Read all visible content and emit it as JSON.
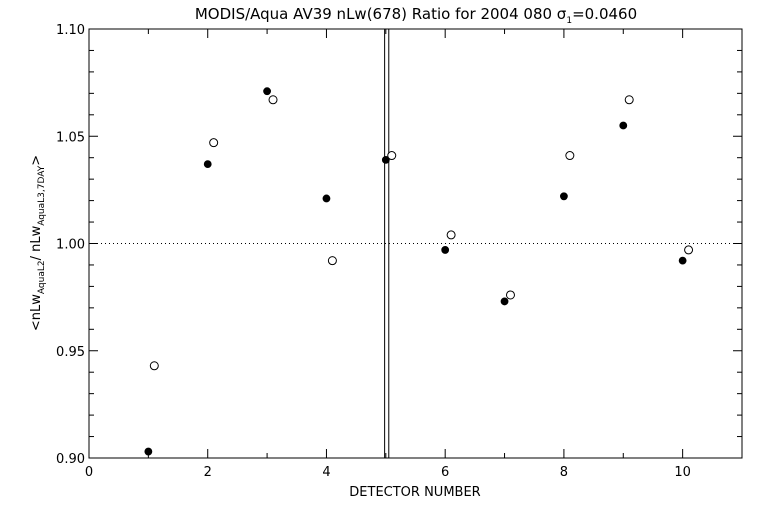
{
  "chart_data": {
    "type": "scatter",
    "title": "MODIS/Aqua AV39 nLw(678) Ratio for 2004 080 σ",
    "title_sub": "1",
    "title_tail": "=0.0460",
    "xlabel": "DETECTOR NUMBER",
    "ylabel": {
      "prefix": "<nLw",
      "sub1": "AquaL2",
      "mid": "/ nLw",
      "sub2": "AquaL3,7DAY",
      "suffix": ">"
    },
    "xlim": [
      0,
      11
    ],
    "ylim": [
      0.9,
      1.1
    ],
    "xticks": [
      0,
      2,
      4,
      6,
      8,
      10
    ],
    "xtick_labels": [
      "0",
      "2",
      "4",
      "6",
      "8",
      "10"
    ],
    "yticks": [
      0.9,
      0.95,
      1.0,
      1.05,
      1.1
    ],
    "ytick_labels": [
      "0.90",
      "0.95",
      "1.00",
      "1.05",
      "1.10"
    ],
    "reference_line": 1.0,
    "vertical_lines": [
      4.98,
      5.05
    ],
    "grid": false,
    "series": [
      {
        "marker": "filled-circle",
        "x": [
          1,
          2,
          3,
          4,
          5,
          6,
          7,
          8,
          9,
          10
        ],
        "y": [
          0.903,
          1.037,
          1.071,
          1.021,
          1.039,
          0.997,
          0.973,
          1.022,
          1.055,
          0.992
        ]
      },
      {
        "marker": "open-circle",
        "x": [
          1.1,
          2.1,
          3.1,
          4.1,
          5.1,
          6.1,
          7.1,
          8.1,
          9.1,
          10.1
        ],
        "y": [
          0.943,
          1.047,
          1.067,
          0.992,
          1.041,
          1.004,
          0.976,
          1.041,
          1.067,
          0.997
        ]
      }
    ]
  }
}
